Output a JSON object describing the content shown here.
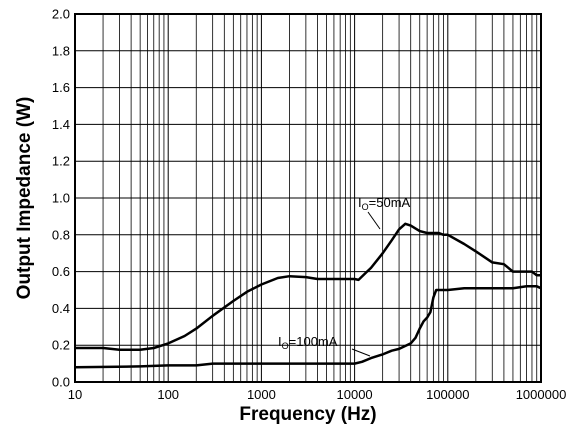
{
  "chart_data": {
    "type": "line",
    "xscale": "log",
    "xlim": [
      10,
      1000000
    ],
    "ylim": [
      0,
      2.0
    ],
    "grid": true,
    "xlabel": "Frequency (Hz)",
    "ylabel": "Output Impedance (W)",
    "xticks": [
      {
        "value": 10,
        "label": "10"
      },
      {
        "value": 100,
        "label": "100"
      },
      {
        "value": 1000,
        "label": "1000"
      },
      {
        "value": 10000,
        "label": "10000"
      },
      {
        "value": 100000,
        "label": "100000"
      },
      {
        "value": 1000000,
        "label": "1000000"
      }
    ],
    "yticks": [
      {
        "value": 0.0,
        "label": "0.0"
      },
      {
        "value": 0.2,
        "label": "0.2"
      },
      {
        "value": 0.4,
        "label": "0.4"
      },
      {
        "value": 0.6,
        "label": "0.6"
      },
      {
        "value": 0.8,
        "label": "0.8"
      },
      {
        "value": 1.0,
        "label": "1.0"
      },
      {
        "value": 1.2,
        "label": "1.2"
      },
      {
        "value": 1.4,
        "label": "1.4"
      },
      {
        "value": 1.6,
        "label": "1.6"
      },
      {
        "value": 1.8,
        "label": "1.8"
      },
      {
        "value": 2.0,
        "label": "2.0"
      }
    ],
    "series": [
      {
        "name": "IO=50mA",
        "label_main": "I",
        "label_sub": "O",
        "label_rest": "=50mA",
        "color": "#000000",
        "points": [
          [
            10,
            0.185
          ],
          [
            20,
            0.185
          ],
          [
            30,
            0.175
          ],
          [
            50,
            0.175
          ],
          [
            70,
            0.185
          ],
          [
            100,
            0.21
          ],
          [
            150,
            0.25
          ],
          [
            200,
            0.29
          ],
          [
            300,
            0.36
          ],
          [
            500,
            0.44
          ],
          [
            700,
            0.49
          ],
          [
            1000,
            0.53
          ],
          [
            1500,
            0.565
          ],
          [
            2000,
            0.575
          ],
          [
            3000,
            0.57
          ],
          [
            4000,
            0.56
          ],
          [
            5000,
            0.56
          ],
          [
            7000,
            0.56
          ],
          [
            10000,
            0.56
          ],
          [
            11000,
            0.555
          ],
          [
            13000,
            0.59
          ],
          [
            15000,
            0.62
          ],
          [
            20000,
            0.7
          ],
          [
            25000,
            0.77
          ],
          [
            30000,
            0.83
          ],
          [
            35000,
            0.86
          ],
          [
            40000,
            0.85
          ],
          [
            50000,
            0.82
          ],
          [
            60000,
            0.81
          ],
          [
            70000,
            0.81
          ],
          [
            80000,
            0.81
          ],
          [
            90000,
            0.8
          ],
          [
            100000,
            0.8
          ],
          [
            150000,
            0.75
          ],
          [
            200000,
            0.71
          ],
          [
            300000,
            0.65
          ],
          [
            400000,
            0.64
          ],
          [
            500000,
            0.6
          ],
          [
            700000,
            0.6
          ],
          [
            800000,
            0.6
          ],
          [
            900000,
            0.58
          ],
          [
            1000000,
            0.58
          ]
        ]
      },
      {
        "name": "IO=100mA",
        "label_main": "I",
        "label_sub": "O",
        "label_rest": "=100mA",
        "color": "#000000",
        "points": [
          [
            10,
            0.08
          ],
          [
            50,
            0.085
          ],
          [
            100,
            0.09
          ],
          [
            200,
            0.09
          ],
          [
            300,
            0.1
          ],
          [
            1000,
            0.1
          ],
          [
            5000,
            0.1
          ],
          [
            10000,
            0.1
          ],
          [
            12000,
            0.11
          ],
          [
            15000,
            0.13
          ],
          [
            20000,
            0.15
          ],
          [
            25000,
            0.17
          ],
          [
            30000,
            0.18
          ],
          [
            40000,
            0.21
          ],
          [
            45000,
            0.24
          ],
          [
            50000,
            0.29
          ],
          [
            55000,
            0.33
          ],
          [
            60000,
            0.35
          ],
          [
            65000,
            0.38
          ],
          [
            70000,
            0.46
          ],
          [
            75000,
            0.5
          ],
          [
            100000,
            0.5
          ],
          [
            150000,
            0.51
          ],
          [
            200000,
            0.51
          ],
          [
            500000,
            0.51
          ],
          [
            700000,
            0.52
          ],
          [
            900000,
            0.52
          ],
          [
            1000000,
            0.51
          ]
        ]
      }
    ]
  }
}
